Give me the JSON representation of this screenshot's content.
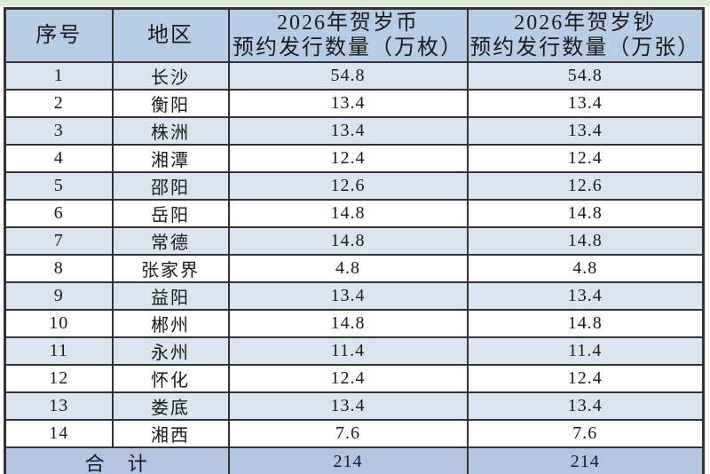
{
  "page": {
    "colors": {
      "header_bg": "#b7cce5",
      "row_alt_bg": "#dbe5f1",
      "row_bg": "#ffffff",
      "total_bg": "#b2c5e1",
      "border": "#333333",
      "text": "#1a1a1a",
      "strip": "#dcead7"
    }
  },
  "chart_data": {
    "type": "table",
    "title": "",
    "columns": [
      {
        "label": "序号"
      },
      {
        "label": "地区"
      },
      {
        "line1": "2026年贺岁币",
        "line2": "预约发行数量（万枚）"
      },
      {
        "line1": "2026年贺岁钞",
        "line2": "预约发行数量（万张）"
      }
    ],
    "rows": [
      {
        "no": "1",
        "region": "长沙",
        "coin": "54.8",
        "banknote": "54.8"
      },
      {
        "no": "2",
        "region": "衡阳",
        "coin": "13.4",
        "banknote": "13.4"
      },
      {
        "no": "3",
        "region": "株洲",
        "coin": "13.4",
        "banknote": "13.4"
      },
      {
        "no": "4",
        "region": "湘潭",
        "coin": "12.4",
        "banknote": "12.4"
      },
      {
        "no": "5",
        "region": "邵阳",
        "coin": "12.6",
        "banknote": "12.6"
      },
      {
        "no": "6",
        "region": "岳阳",
        "coin": "14.8",
        "banknote": "14.8"
      },
      {
        "no": "7",
        "region": "常德",
        "coin": "14.8",
        "banknote": "14.8"
      },
      {
        "no": "8",
        "region": "张家界",
        "coin": "4.8",
        "banknote": "4.8"
      },
      {
        "no": "9",
        "region": "益阳",
        "coin": "13.4",
        "banknote": "13.4"
      },
      {
        "no": "10",
        "region": "郴州",
        "coin": "14.8",
        "banknote": "14.8"
      },
      {
        "no": "11",
        "region": "永州",
        "coin": "11.4",
        "banknote": "11.4"
      },
      {
        "no": "12",
        "region": "怀化",
        "coin": "12.4",
        "banknote": "12.4"
      },
      {
        "no": "13",
        "region": "娄底",
        "coin": "13.4",
        "banknote": "13.4"
      },
      {
        "no": "14",
        "region": "湘西",
        "coin": "7.6",
        "banknote": "7.6"
      }
    ],
    "total": {
      "label": "合　计",
      "coin": "214",
      "banknote": "214"
    },
    "layout": {
      "alt_row_shading": true,
      "header_position": "top",
      "total_row_merged_first_two_columns": true
    }
  }
}
